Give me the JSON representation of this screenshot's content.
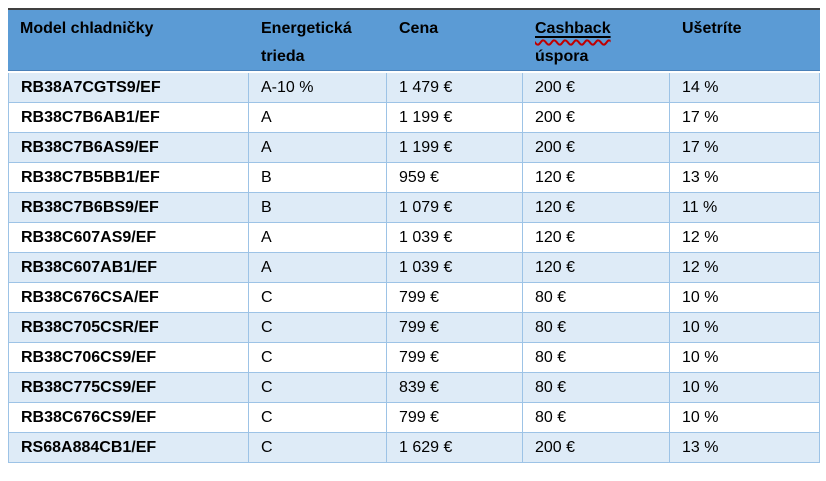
{
  "colors": {
    "header_bg": "#5B9BD5",
    "row_stripe_bg": "#DEEBF7",
    "row_bg": "#FFFFFF",
    "gridline": "#9DC3E6",
    "table_top_border": "#404040",
    "spellcheck_squiggle": "#C00000",
    "text": "#000000"
  },
  "table": {
    "headers": [
      {
        "id": "model",
        "lines": [
          "Model chladničky"
        ]
      },
      {
        "id": "energy",
        "lines": [
          "Energetická",
          "trieda"
        ]
      },
      {
        "id": "price",
        "lines": [
          "Cena"
        ]
      },
      {
        "id": "cashback",
        "lines": [
          "Cashback",
          "úspora"
        ],
        "underlined_line": "Cashback",
        "spellcheck_underline": true
      },
      {
        "id": "savings",
        "lines": [
          "Ušetríte"
        ]
      }
    ],
    "rows": [
      [
        "RB38A7CGTS9/EF",
        "A-10 %",
        "1 479 €",
        "200 €",
        "14 %"
      ],
      [
        "RB38C7B6AB1/EF",
        "A",
        "1 199 €",
        "200 €",
        "17 %"
      ],
      [
        "RB38C7B6AS9/EF",
        "A",
        "1 199 €",
        "200 €",
        "17 %"
      ],
      [
        "RB38C7B5BB1/EF",
        "B",
        "959 €",
        "120 €",
        "13 %"
      ],
      [
        "RB38C7B6BS9/EF",
        "B",
        "1 079 €",
        "120 €",
        "11 %"
      ],
      [
        "RB38C607AS9/EF",
        "A",
        "1 039 €",
        "120 €",
        "12 %"
      ],
      [
        "RB38C607AB1/EF",
        "A",
        "1 039 €",
        "120 €",
        "12 %"
      ],
      [
        "RB38C676CSA/EF",
        "C",
        "799 €",
        "80 €",
        "10 %"
      ],
      [
        "RB38C705CSR/EF",
        "C",
        "799 €",
        "80 €",
        "10 %"
      ],
      [
        "RB38C706CS9/EF",
        "C",
        "799 €",
        "80 €",
        "10 %"
      ],
      [
        "RB38C775CS9/EF",
        "C",
        "839 €",
        "80 €",
        "10 %"
      ],
      [
        "RB38C676CS9/EF",
        "C",
        "799 €",
        "80 €",
        "10 %"
      ],
      [
        "RS68A884CB1/EF",
        "C",
        "1 629 €",
        "200 €",
        "13 %"
      ]
    ]
  }
}
